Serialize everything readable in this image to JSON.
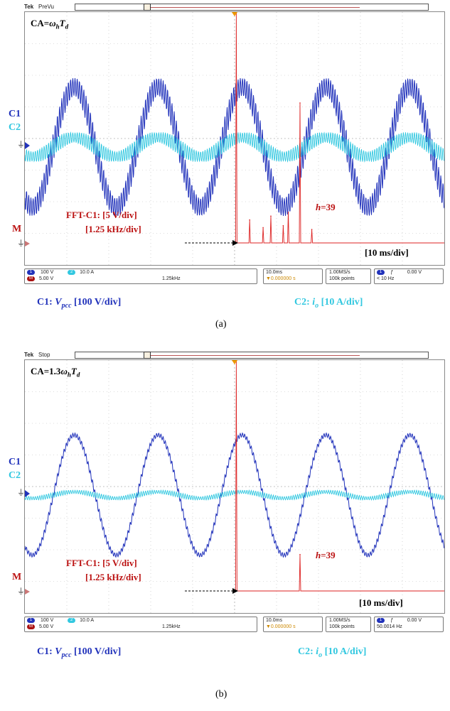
{
  "panels": [
    {
      "id": "a",
      "header": {
        "brand": "Tek",
        "state": "PreVu"
      },
      "ca_label": "CA=ωhTd",
      "ca_label_parts": {
        "prefix": "CA=",
        "omega": "ω",
        "h": "h",
        "T": "T",
        "d": "d"
      },
      "channel_labels": {
        "c1": "C1",
        "c2": "C2",
        "m": "M"
      },
      "fft_line1": "FFT-C1: [5 V/div]",
      "fft_line2": "[1.25 kHz/div]",
      "harmonic_label": "h=39",
      "harmonic_parts": {
        "h": "h",
        "eq": "=39"
      },
      "time_div": "[10 ms/div]",
      "status": {
        "ch1_scale": "100 V",
        "ch2_scale": "10.0 A",
        "math_scale": "5.00 V",
        "math_freq": "1.25kHz",
        "timebase": "10.0ms",
        "trigger_pos": "▼0.000000 s",
        "sample_rate": "1.00MS/s",
        "record_length": "100k points",
        "trig_level": "0.00 V",
        "trig_freq": "< 10 Hz"
      },
      "captions": {
        "c1_prefix": "C1: ",
        "c1_var": "V",
        "c1_sub": "pcc",
        "c1_scale": " [100 V/div]",
        "c2_prefix": "C2: ",
        "c2_var": "i",
        "c2_sub": "o",
        "c2_scale": " [10 A/div]"
      },
      "sub_label": "(a)"
    },
    {
      "id": "b",
      "header": {
        "brand": "Tek",
        "state": "Stop"
      },
      "ca_label": "CA=1.3ωhTd",
      "ca_label_parts": {
        "prefix": "CA=1.3",
        "omega": "ω",
        "h": "h",
        "T": "T",
        "d": "d"
      },
      "channel_labels": {
        "c1": "C1",
        "c2": "C2",
        "m": "M"
      },
      "fft_line1": "FFT-C1: [5 V/div]",
      "fft_line2": "[1.25 kHz/div]",
      "harmonic_label": "h=39",
      "harmonic_parts": {
        "h": "h",
        "eq": "=39"
      },
      "time_div": "[10 ms/div]",
      "status": {
        "ch1_scale": "100 V",
        "ch2_scale": "10.0 A",
        "math_scale": "5.00 V",
        "math_freq": "1.25kHz",
        "timebase": "10.0ms",
        "trigger_pos": "▼0.000000 s",
        "sample_rate": "1.00MS/s",
        "record_length": "100k points",
        "trig_level": "0.00 V",
        "trig_freq": "50.0014 Hz"
      },
      "captions": {
        "c1_prefix": "C1: ",
        "c1_var": "V",
        "c1_sub": "pcc",
        "c1_scale": " [100 V/div]",
        "c2_prefix": "C2: ",
        "c2_var": "i",
        "c2_sub": "o",
        "c2_scale": " [10 A/div]"
      },
      "sub_label": "(b)"
    }
  ],
  "colors": {
    "c1": "#2233bb",
    "c2": "#33c8e0",
    "fft": "#dd2222",
    "label_red": "#b11111",
    "grid": "#bbbbbb"
  },
  "chart_data": [
    {
      "type": "line",
      "panel": "a",
      "x_unit": "ms",
      "x_range": [
        0,
        100
      ],
      "series": [
        {
          "name": "C1",
          "signal": "sine",
          "frequency_hz": 50,
          "amplitude_div": 1.9,
          "offset_div": 0,
          "harmonic_ripple_div": 0.45
        },
        {
          "name": "C2",
          "signal": "sine",
          "frequency_hz": 50,
          "amplitude_div": 0.3,
          "offset_div": 0,
          "harmonic_ripple_div": 0.25
        },
        {
          "name": "M",
          "signal": "fft_spectrum",
          "peaks": [
            {
              "freq_khz": 0.05,
              "amp_div": 12.0
            },
            {
              "freq_khz": 1.95,
              "amp_div": 7.3
            },
            {
              "freq_khz": 1.08,
              "amp_div": 1.4
            },
            {
              "freq_khz": 1.6,
              "amp_div": 1.6
            },
            {
              "freq_khz": 1.45,
              "amp_div": 0.9
            },
            {
              "freq_khz": 2.3,
              "amp_div": 0.7
            },
            {
              "freq_khz": 0.45,
              "amp_div": 1.2
            },
            {
              "freq_khz": 0.85,
              "amp_div": 0.8
            }
          ]
        }
      ]
    },
    {
      "type": "line",
      "panel": "b",
      "x_unit": "ms",
      "x_range": [
        0,
        100
      ],
      "series": [
        {
          "name": "C1",
          "signal": "sine",
          "frequency_hz": 50,
          "amplitude_div": 1.9,
          "offset_div": 0,
          "harmonic_ripple_div": 0.1
        },
        {
          "name": "C2",
          "signal": "sine",
          "frequency_hz": 50,
          "amplitude_div": 0.1,
          "offset_div": 0,
          "harmonic_ripple_div": 0.08
        },
        {
          "name": "M",
          "signal": "fft_spectrum",
          "peaks": [
            {
              "freq_khz": 0.05,
              "amp_div": 12.0
            },
            {
              "freq_khz": 1.95,
              "amp_div": 1.9
            }
          ]
        }
      ]
    }
  ]
}
